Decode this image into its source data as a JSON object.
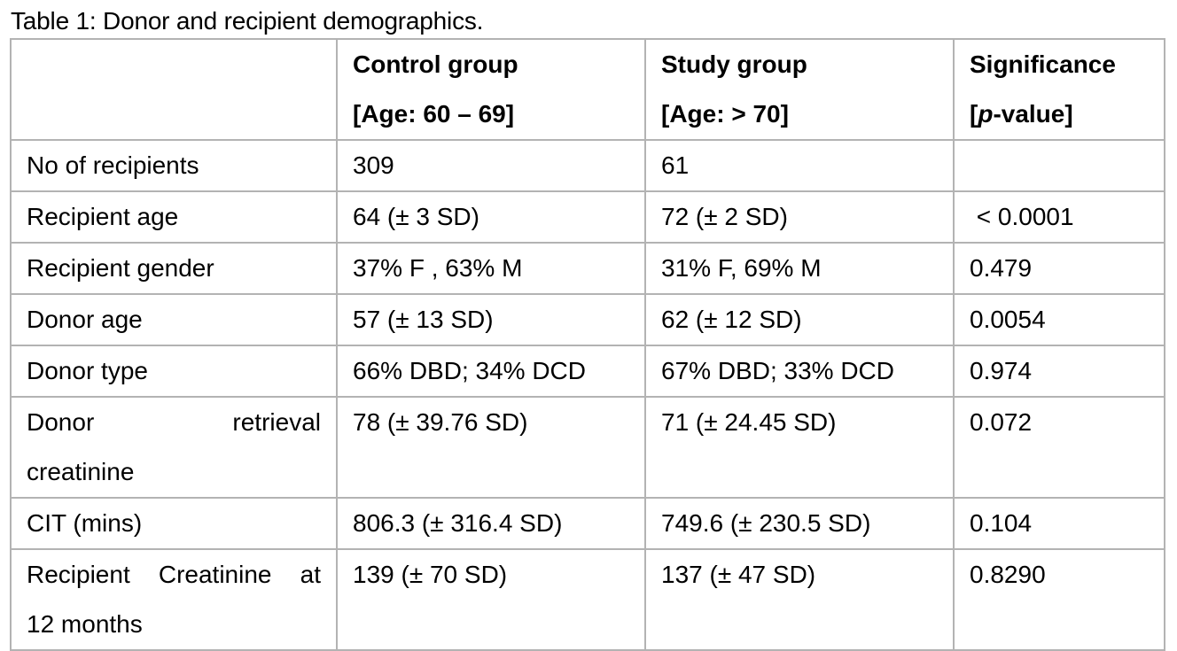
{
  "caption": "Table 1: Donor and recipient demographics.",
  "table": {
    "headers": [
      {
        "line1": "",
        "line2": ""
      },
      {
        "line1": "Control group",
        "line2": "[Age: 60 – 69]"
      },
      {
        "line1": "Study group",
        "line2": "[Age: > 70]"
      },
      {
        "line1": "Significance",
        "line2_open": "[",
        "line2_italic": "p",
        "line2_rest": "-value]"
      }
    ],
    "rows": [
      {
        "label": "No of recipients",
        "control": "309",
        "study": "61",
        "p": ""
      },
      {
        "label": "Recipient age",
        "control": "64 (± 3 SD)",
        "study": "72 (± 2 SD)",
        "p": " < 0.0001"
      },
      {
        "label": "Recipient gender",
        "control": "37% F , 63% M",
        "study": "31% F, 69% M",
        "p": "0.479"
      },
      {
        "label": "Donor age",
        "control": "57 (± 13 SD)",
        "study": "62 (± 12 SD)",
        "p": "0.0054"
      },
      {
        "label": "Donor type",
        "control": "66% DBD; 34% DCD",
        "study": "67% DBD; 33% DCD",
        "p": "0.974"
      },
      {
        "label_a": "Donor",
        "label_b": "retrieval",
        "label_c": "creatinine",
        "control": "78 (± 39.76 SD)",
        "study": "71 (± 24.45 SD)",
        "p": "0.072"
      },
      {
        "label": "CIT (mins)",
        "control": "806.3 (± 316.4 SD)",
        "study": "749.6 (± 230.5 SD)",
        "p": "0.104"
      },
      {
        "label_a": "Recipient Creatinine at",
        "label_c": "12 months",
        "control": "139 (± 70 SD)",
        "study": "137 (± 47 SD)",
        "p": "0.8290"
      }
    ]
  }
}
